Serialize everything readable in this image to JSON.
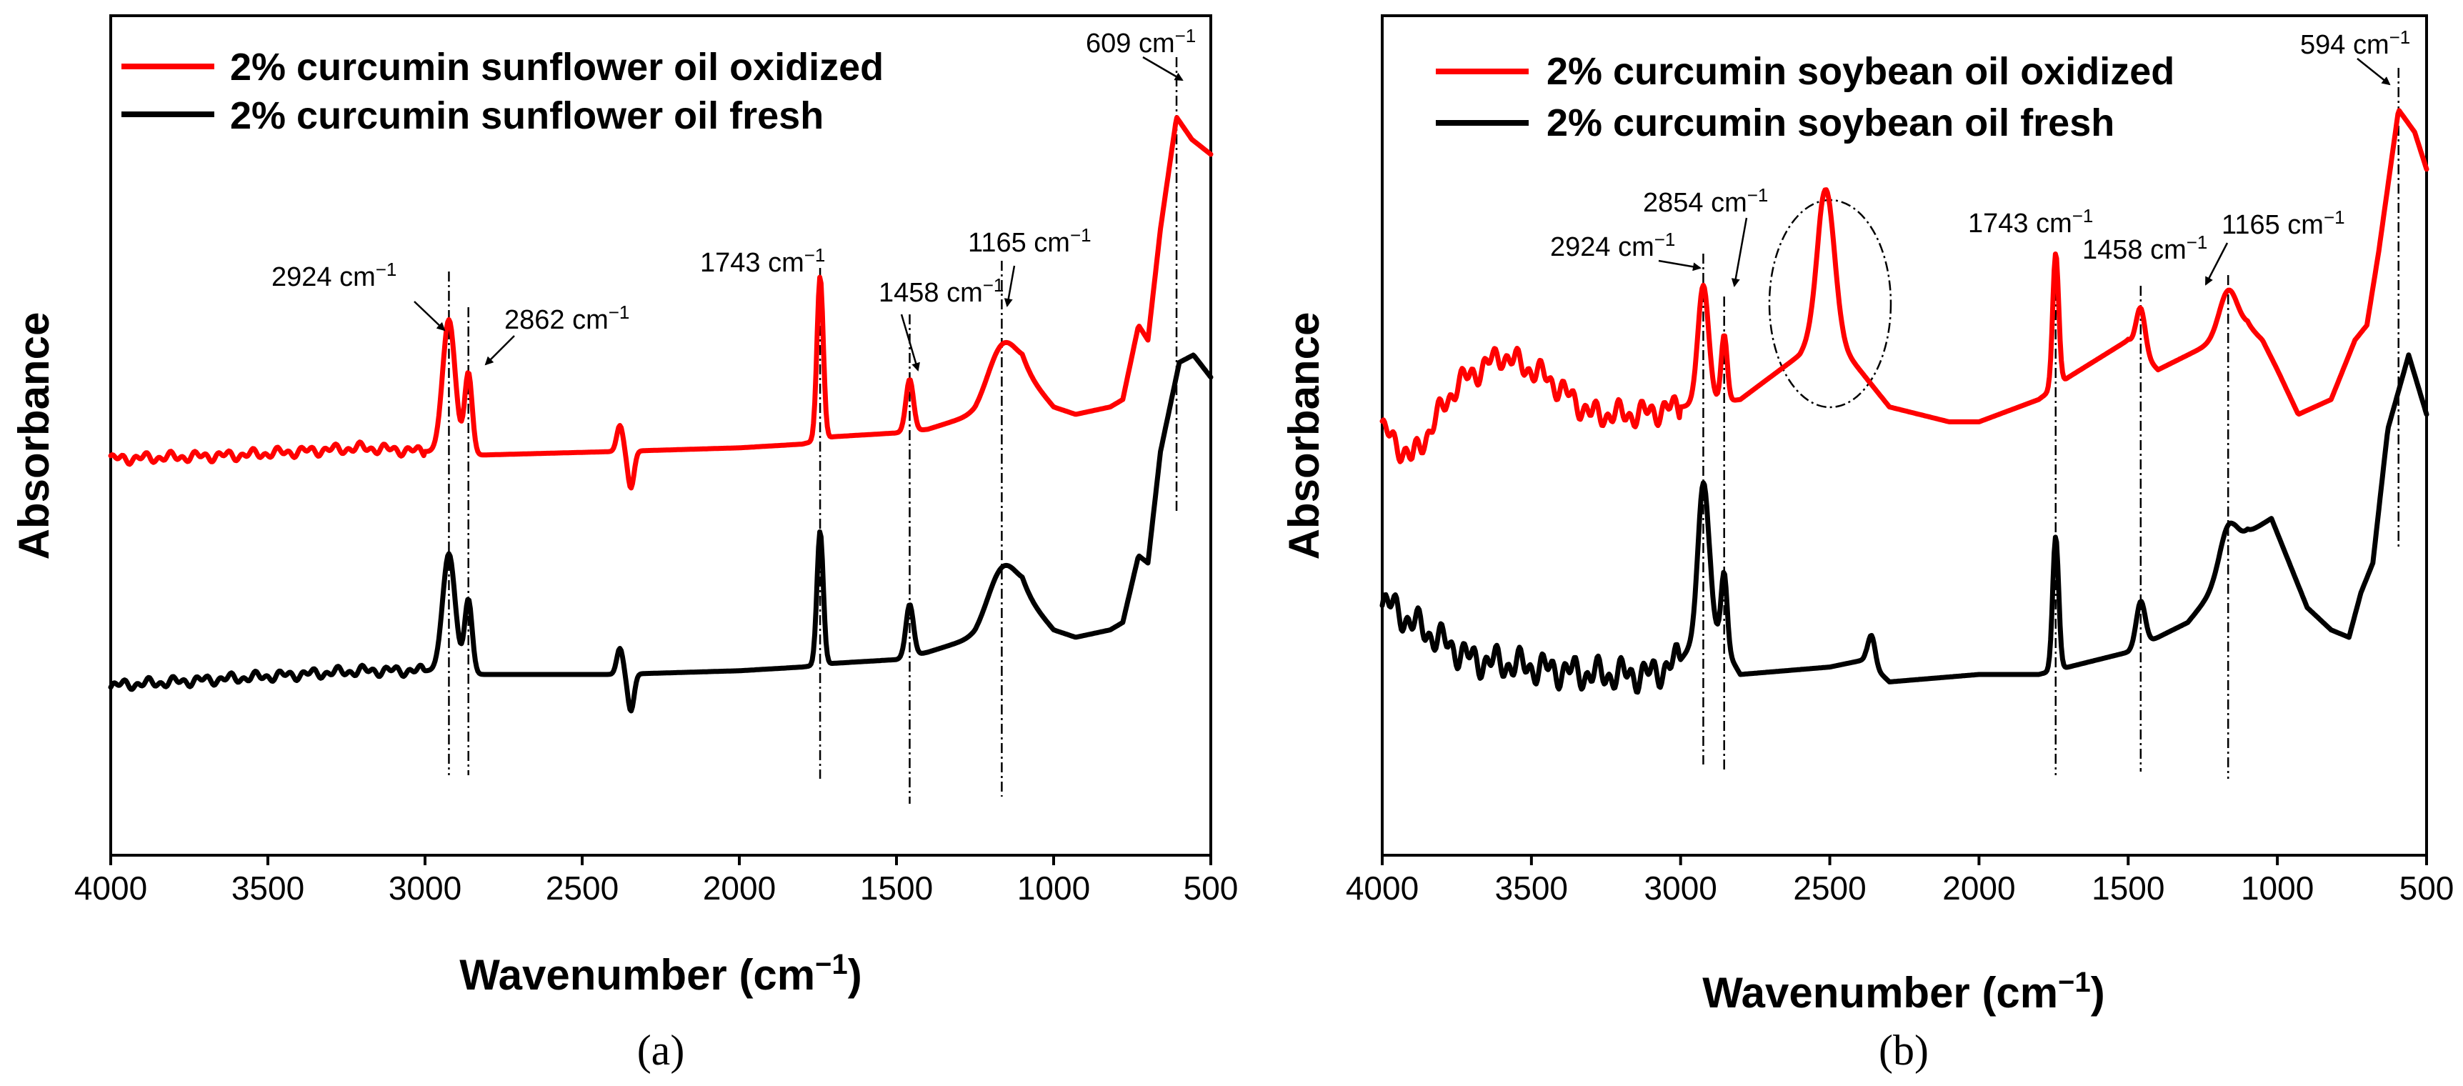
{
  "chart_data": [
    {
      "panel_label": "(a)",
      "type": "line",
      "xlabel": "Wavenumber (cm",
      "xlabel_sup": "−1",
      "xlabel_end": ")",
      "ylabel": "Absorbance",
      "xlim": [
        4000,
        500
      ],
      "ylim": [
        0,
        1
      ],
      "xticks": [
        4000,
        3500,
        3000,
        2500,
        2000,
        1500,
        1000,
        500
      ],
      "legend": {
        "position": "top-left"
      },
      "series": [
        {
          "name": "2% curcumin sunflower oil oxidized",
          "color": "#ff0000",
          "base": 0.445,
          "dip": -0.05,
          "fine_noise": 0.008,
          "points": [
            [
              4000,
              0.44
            ],
            [
              3600,
              0.445
            ],
            [
              3200,
              0.455
            ],
            [
              3000,
              0.45
            ],
            [
              2850,
              0.445
            ],
            [
              2400,
              0.45
            ],
            [
              2000,
              0.455
            ],
            [
              1800,
              0.46
            ],
            [
              1700,
              0.47
            ],
            [
              1500,
              0.475
            ],
            [
              1400,
              0.48
            ],
            [
              1250,
              0.5
            ],
            [
              1200,
              0.52
            ],
            [
              1100,
              0.56
            ],
            [
              1000,
              0.51
            ],
            [
              930,
              0.5
            ],
            [
              820,
              0.51
            ],
            [
              780,
              0.52
            ],
            [
              730,
              0.62
            ],
            [
              700,
              0.6
            ],
            [
              660,
              0.75
            ],
            [
              609,
              0.9
            ],
            [
              560,
              0.87
            ],
            [
              500,
              0.85
            ]
          ],
          "peaks": [
            [
              2924,
              0.18,
              20
            ],
            [
              2862,
              0.11,
              12
            ],
            [
              1743,
              0.22,
              10
            ],
            [
              1458,
              0.07,
              12
            ],
            [
              1165,
              0.06,
              45
            ]
          ]
        },
        {
          "name": "2% curcumin sunflower oil fresh",
          "color": "#000000",
          "base": 0.14,
          "dip": -0.05,
          "fine_noise": 0.008,
          "points": [
            [
              4000,
              0.135
            ],
            [
              3600,
              0.145
            ],
            [
              3200,
              0.155
            ],
            [
              3000,
              0.155
            ],
            [
              2850,
              0.15
            ],
            [
              2400,
              0.15
            ],
            [
              2000,
              0.155
            ],
            [
              1800,
              0.16
            ],
            [
              1700,
              0.165
            ],
            [
              1500,
              0.17
            ],
            [
              1400,
              0.18
            ],
            [
              1250,
              0.2
            ],
            [
              1200,
              0.22
            ],
            [
              1100,
              0.26
            ],
            [
              1000,
              0.21
            ],
            [
              930,
              0.2
            ],
            [
              820,
              0.21
            ],
            [
              780,
              0.22
            ],
            [
              730,
              0.31
            ],
            [
              700,
              0.3
            ],
            [
              660,
              0.45
            ],
            [
              600,
              0.57
            ],
            [
              555,
              0.58
            ],
            [
              500,
              0.55
            ]
          ],
          "peaks": [
            [
              2924,
              0.16,
              20
            ],
            [
              2862,
              0.1,
              12
            ],
            [
              1743,
              0.18,
              10
            ],
            [
              1458,
              0.07,
              12
            ],
            [
              1165,
              0.06,
              45
            ]
          ]
        }
      ],
      "annotations": [
        {
          "label": "2924 cm",
          "x": 2924
        },
        {
          "label": "2862 cm",
          "x": 2862
        },
        {
          "label": "1743 cm",
          "x": 1743
        },
        {
          "label": "1458 cm",
          "x": 1458
        },
        {
          "label": "1165 cm",
          "x": 1165
        },
        {
          "label": "609 cm",
          "x": 609
        }
      ],
      "annotation_sup": "−1"
    },
    {
      "panel_label": "(b)",
      "type": "line",
      "xlabel": "Wavenumber (cm",
      "xlabel_sup": "−1",
      "xlabel_end": ")",
      "ylabel": "Absorbance",
      "xlim": [
        4000,
        500
      ],
      "ylim": [
        0,
        1
      ],
      "xticks": [
        4000,
        3500,
        3000,
        2500,
        2000,
        1500,
        1000,
        500
      ],
      "legend": {
        "position": "top-left"
      },
      "series": [
        {
          "name": "2% curcumin soybean oil oxidized",
          "color": "#ff0000",
          "base": 0.49,
          "dip": 0,
          "fine_noise": 0.02,
          "points": [
            [
              4000,
              0.48
            ],
            [
              3950,
              0.46
            ],
            [
              3900,
              0.44
            ],
            [
              3750,
              0.54
            ],
            [
              3600,
              0.58
            ],
            [
              3450,
              0.55
            ],
            [
              3300,
              0.5
            ],
            [
              3150,
              0.5
            ],
            [
              3000,
              0.51
            ],
            [
              2800,
              0.52
            ],
            [
              2700,
              0.55
            ],
            [
              2600,
              0.58
            ],
            [
              2530,
              0.62
            ],
            [
              2460,
              0.59
            ],
            [
              2380,
              0.55
            ],
            [
              2300,
              0.51
            ],
            [
              2100,
              0.49
            ],
            [
              2000,
              0.49
            ],
            [
              1800,
              0.52
            ],
            [
              1700,
              0.55
            ],
            [
              1500,
              0.6
            ],
            [
              1400,
              0.56
            ],
            [
              1300,
              0.58
            ],
            [
              1200,
              0.6
            ],
            [
              1100,
              0.62
            ],
            [
              1050,
              0.6
            ],
            [
              1000,
              0.56
            ],
            [
              930,
              0.5
            ],
            [
              820,
              0.52
            ],
            [
              740,
              0.6
            ],
            [
              700,
              0.62
            ],
            [
              660,
              0.72
            ],
            [
              594,
              0.91
            ],
            [
              540,
              0.88
            ],
            [
              500,
              0.83
            ]
          ],
          "peaks": [
            [
              2924,
              0.16,
              18
            ],
            [
              2854,
              0.09,
              10
            ],
            [
              2512,
              0.19,
              28
            ],
            [
              1743,
              0.18,
              10
            ],
            [
              1458,
              0.06,
              15
            ],
            [
              1165,
              0.06,
              30
            ]
          ]
        },
        {
          "name": "2% curcumin soybean oil fresh",
          "color": "#000000",
          "base": 0.15,
          "dip": 0,
          "fine_noise": 0.025,
          "points": [
            [
              4000,
              0.25
            ],
            [
              3900,
              0.22
            ],
            [
              3700,
              0.17
            ],
            [
              3500,
              0.16
            ],
            [
              3300,
              0.15
            ],
            [
              3100,
              0.15
            ],
            [
              3000,
              0.17
            ],
            [
              2900,
              0.22
            ],
            [
              2800,
              0.15
            ],
            [
              2500,
              0.16
            ],
            [
              2380,
              0.17
            ],
            [
              2300,
              0.14
            ],
            [
              2000,
              0.15
            ],
            [
              1800,
              0.15
            ],
            [
              1700,
              0.16
            ],
            [
              1500,
              0.18
            ],
            [
              1400,
              0.2
            ],
            [
              1300,
              0.22
            ],
            [
              1200,
              0.27
            ],
            [
              1150,
              0.3
            ],
            [
              1100,
              0.34
            ],
            [
              1020,
              0.36
            ],
            [
              960,
              0.3
            ],
            [
              900,
              0.24
            ],
            [
              820,
              0.21
            ],
            [
              760,
              0.2
            ],
            [
              720,
              0.26
            ],
            [
              680,
              0.3
            ],
            [
              630,
              0.48
            ],
            [
              560,
              0.58
            ],
            [
              500,
              0.5
            ]
          ],
          "peaks": [
            [
              2924,
              0.2,
              18
            ],
            [
              2854,
              0.1,
              10
            ],
            [
              2360,
              0.04,
              12
            ],
            [
              1743,
              0.18,
              10
            ],
            [
              1458,
              0.06,
              15
            ],
            [
              1165,
              0.06,
              30
            ]
          ]
        }
      ],
      "annotations": [
        {
          "label": "2924 cm",
          "x": 2924
        },
        {
          "label": "2854 cm",
          "x": 2854
        },
        {
          "label": "1743 cm",
          "x": 1743
        },
        {
          "label": "1458 cm",
          "x": 1458
        },
        {
          "label": "1165 cm",
          "x": 1165
        },
        {
          "label": "594 cm",
          "x": 594
        }
      ],
      "annotation_sup": "−1",
      "highlight": {
        "x_center": 2512,
        "note": "dash-dot ellipse around oxidation band"
      }
    }
  ]
}
